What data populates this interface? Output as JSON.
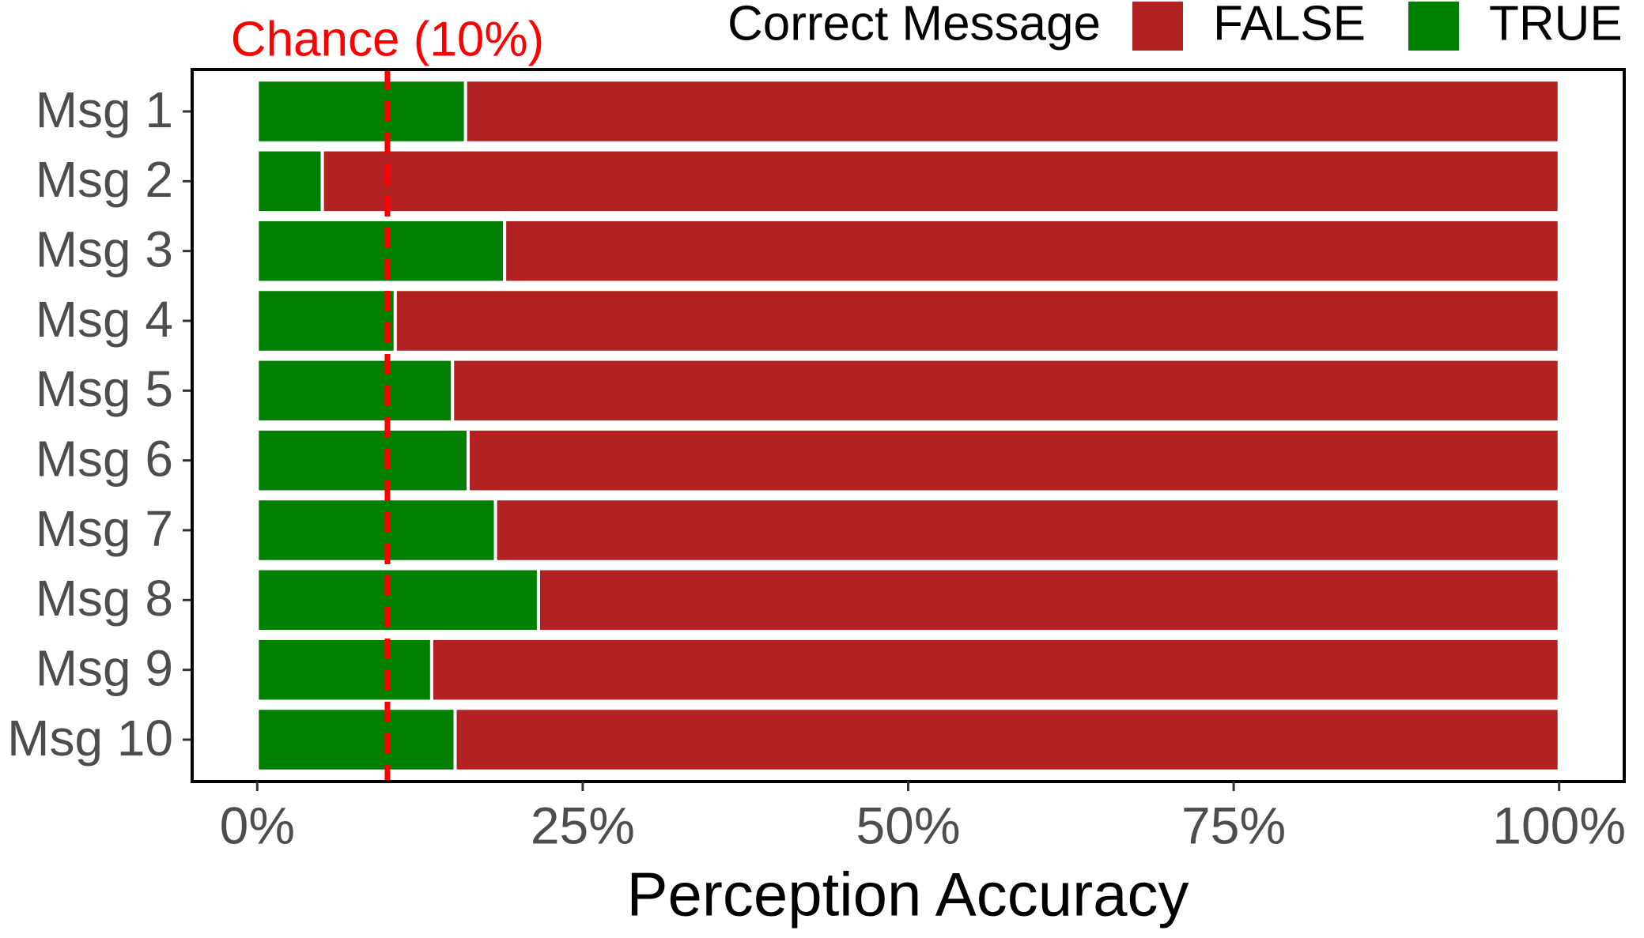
{
  "chart_data": {
    "type": "stacked-bar-horizontal",
    "categories": [
      "Msg 1",
      "Msg 2",
      "Msg 3",
      "Msg 4",
      "Msg 5",
      "Msg 6",
      "Msg 7",
      "Msg 8",
      "Msg 9",
      "Msg 10"
    ],
    "series": [
      {
        "name": "TRUE",
        "color": "#008000",
        "values": [
          16,
          5,
          19,
          10.6,
          15,
          16.2,
          18.3,
          21.6,
          13.4,
          15.2
        ]
      },
      {
        "name": "FALSE",
        "color": "#b22222",
        "values": [
          84,
          95,
          81,
          89.4,
          85,
          83.8,
          81.7,
          78.4,
          86.6,
          84.8
        ]
      }
    ],
    "legend_title": "Correct Message",
    "legend_order": [
      1,
      0
    ],
    "legend_position": "top",
    "x_label": "Perception Accuracy",
    "xlim": [
      -5,
      105
    ],
    "xticks": [
      {
        "value": 0,
        "label": "0%"
      },
      {
        "value": 25,
        "label": "25%"
      },
      {
        "value": 50,
        "label": "50%"
      },
      {
        "value": 75,
        "label": "75%"
      },
      {
        "value": 100,
        "label": "100%"
      }
    ],
    "reference_line": {
      "value": 10,
      "label": "Chance (10%)",
      "color": "#ff0000"
    },
    "grid": false
  }
}
